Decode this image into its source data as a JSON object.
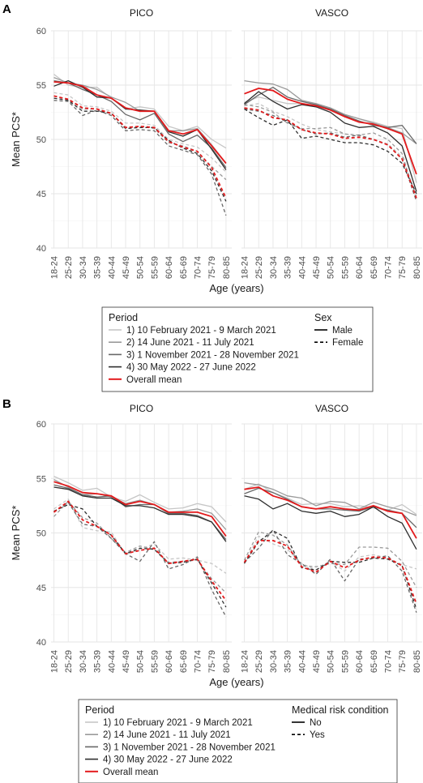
{
  "chart_data": [
    {
      "type": "line",
      "panel_label": "A",
      "facets": [
        "PICO",
        "VASCO"
      ],
      "categories": [
        "18-24",
        "25-29",
        "30-34",
        "35-39",
        "40-44",
        "45-49",
        "50-54",
        "55-59",
        "60-64",
        "65-69",
        "70-74",
        "75-79",
        "80-85"
      ],
      "ylabel": "Mean PCS*",
      "xlabel": "Age (years)",
      "ylim": [
        40,
        60
      ],
      "yticks": [
        40,
        45,
        50,
        55,
        60
      ],
      "grid": true,
      "legend_position": "bottom",
      "legend": {
        "color_title": "Period",
        "color_entries": [
          {
            "label": "1) 10 February 2021 - 9 March 2021",
            "color": "#c6c6c6"
          },
          {
            "label": "2) 14 June 2021 - 11 July 2021",
            "color": "#9a9a9a"
          },
          {
            "label": "3) 1 November 2021 - 28 November 2021",
            "color": "#686868"
          },
          {
            "label": "4) 30 May 2022 - 27 June 2022",
            "color": "#2e2e2e"
          },
          {
            "label": "Overall mean",
            "color": "#e31a1c"
          }
        ],
        "linetype_title": "Sex",
        "linetype_entries": [
          {
            "label": "Male",
            "style": "solid"
          },
          {
            "label": "Female",
            "style": "dashed"
          }
        ]
      },
      "series": [
        {
          "facet": "PICO",
          "period": 1,
          "group": "Male",
          "values": [
            56.0,
            55.0,
            54.8,
            54.8,
            53.8,
            52.8,
            53.0,
            52.8,
            51.2,
            50.8,
            51.2,
            50.0,
            49.2
          ]
        },
        {
          "facet": "PICO",
          "period": 2,
          "group": "Male",
          "values": [
            55.7,
            55.2,
            55.0,
            54.6,
            53.9,
            53.4,
            52.6,
            52.6,
            50.8,
            50.8,
            51.0,
            49.5,
            47.8
          ]
        },
        {
          "facet": "PICO",
          "period": 3,
          "group": "Male",
          "values": [
            55.4,
            55.2,
            54.6,
            54.1,
            53.5,
            52.3,
            51.8,
            52.4,
            50.5,
            49.8,
            50.4,
            49.2,
            47.4
          ]
        },
        {
          "facet": "PICO",
          "period": 4,
          "group": "Male",
          "values": [
            54.9,
            55.4,
            54.8,
            53.9,
            53.8,
            52.8,
            52.7,
            52.6,
            50.7,
            50.3,
            50.9,
            49.1,
            47.2
          ]
        },
        {
          "facet": "PICO",
          "period": "mean",
          "group": "Male",
          "values": [
            55.3,
            55.2,
            54.9,
            54.1,
            53.8,
            52.9,
            52.6,
            52.6,
            50.8,
            50.5,
            50.9,
            49.4,
            47.8
          ]
        },
        {
          "facet": "PICO",
          "period": 1,
          "group": "Female",
          "values": [
            54.3,
            54.1,
            53.1,
            53.0,
            52.6,
            51.5,
            51.5,
            51.3,
            50.0,
            49.6,
            49.3,
            48.3,
            47.0
          ]
        },
        {
          "facet": "PICO",
          "period": 2,
          "group": "Female",
          "values": [
            54.0,
            53.7,
            52.8,
            52.8,
            52.4,
            51.1,
            51.2,
            51.0,
            49.7,
            49.4,
            48.9,
            47.5,
            46.3
          ]
        },
        {
          "facet": "PICO",
          "period": 3,
          "group": "Female",
          "values": [
            53.6,
            53.5,
            52.2,
            52.7,
            52.2,
            50.8,
            50.9,
            50.8,
            49.4,
            49.0,
            48.6,
            46.8,
            43.0
          ]
        },
        {
          "facet": "PICO",
          "period": 4,
          "group": "Female",
          "values": [
            53.8,
            53.6,
            52.6,
            52.6,
            52.4,
            51.0,
            51.1,
            51.1,
            49.9,
            49.2,
            48.7,
            47.1,
            44.3
          ]
        },
        {
          "facet": "PICO",
          "period": "mean",
          "group": "Female",
          "values": [
            54.0,
            53.7,
            52.9,
            52.8,
            52.4,
            51.1,
            51.2,
            51.1,
            49.8,
            49.3,
            48.9,
            47.4,
            44.6
          ]
        },
        {
          "facet": "VASCO",
          "period": 1,
          "group": "Male",
          "values": [
            53.4,
            53.9,
            53.6,
            53.3,
            53.3,
            53.1,
            52.8,
            52.3,
            51.9,
            51.6,
            51.2,
            51.0,
            46.0
          ]
        },
        {
          "facet": "VASCO",
          "period": 2,
          "group": "Male",
          "values": [
            55.4,
            55.2,
            55.1,
            54.6,
            53.6,
            53.3,
            52.9,
            52.3,
            51.9,
            51.5,
            51.1,
            50.6,
            49.6
          ]
        },
        {
          "facet": "VASCO",
          "period": 3,
          "group": "Male",
          "values": [
            53.2,
            54.1,
            54.8,
            53.9,
            53.5,
            53.2,
            52.8,
            52.2,
            51.7,
            51.3,
            51.1,
            51.3,
            49.6
          ]
        },
        {
          "facet": "VASCO",
          "period": 4,
          "group": "Male",
          "values": [
            53.3,
            54.4,
            53.5,
            52.8,
            53.2,
            53.0,
            52.5,
            51.5,
            51.1,
            51.2,
            50.6,
            49.4,
            45.2
          ]
        },
        {
          "facet": "VASCO",
          "period": "mean",
          "group": "Male",
          "values": [
            54.2,
            54.7,
            54.5,
            53.7,
            53.3,
            53.1,
            52.7,
            52.1,
            51.6,
            51.4,
            51.0,
            50.5,
            46.8
          ]
        },
        {
          "facet": "VASCO",
          "period": 1,
          "group": "Female",
          "values": [
            53.1,
            53.3,
            52.6,
            52.1,
            51.4,
            50.9,
            50.7,
            50.5,
            50.3,
            50.0,
            49.6,
            48.4,
            44.8
          ]
        },
        {
          "facet": "VASCO",
          "period": 2,
          "group": "Female",
          "values": [
            53.2,
            53.0,
            52.5,
            51.5,
            51.0,
            51.0,
            51.1,
            50.5,
            50.4,
            50.6,
            50.0,
            48.7,
            44.4
          ]
        },
        {
          "facet": "VASCO",
          "period": 3,
          "group": "Female",
          "values": [
            52.8,
            52.6,
            52.2,
            51.6,
            50.9,
            50.5,
            50.6,
            50.2,
            50.4,
            50.0,
            49.5,
            48.2,
            44.3
          ]
        },
        {
          "facet": "VASCO",
          "period": 4,
          "group": "Female",
          "values": [
            52.8,
            52.0,
            51.3,
            51.8,
            50.1,
            50.3,
            50.0,
            49.7,
            49.7,
            49.5,
            48.9,
            47.8,
            45.0
          ]
        },
        {
          "facet": "VASCO",
          "period": "mean",
          "group": "Female",
          "values": [
            52.9,
            52.7,
            52.0,
            51.8,
            50.9,
            50.6,
            50.5,
            50.1,
            50.2,
            50.0,
            49.5,
            48.2,
            44.6
          ]
        }
      ]
    },
    {
      "type": "line",
      "panel_label": "B",
      "facets": [
        "PICO",
        "VASCO"
      ],
      "categories": [
        "18-24",
        "25-29",
        "30-34",
        "35-39",
        "40-44",
        "45-49",
        "50-54",
        "55-59",
        "60-64",
        "65-69",
        "70-74",
        "75-79",
        "80-85"
      ],
      "ylabel": "Mean PCS*",
      "xlabel": "Age (years)",
      "ylim": [
        40,
        60
      ],
      "yticks": [
        40,
        45,
        50,
        55,
        60
      ],
      "grid": true,
      "legend_position": "bottom",
      "legend": {
        "color_title": "Period",
        "color_entries": [
          {
            "label": "1) 10 February 2021 - 9 March 2021",
            "color": "#c6c6c6"
          },
          {
            "label": "2) 14 June 2021 - 11 July 2021",
            "color": "#9a9a9a"
          },
          {
            "label": "3) 1 November 2021 - 28 November 2021",
            "color": "#686868"
          },
          {
            "label": "4) 30 May 2022 - 27 June 2022",
            "color": "#2e2e2e"
          },
          {
            "label": "Overall mean",
            "color": "#e31a1c"
          }
        ],
        "linetype_title": "Medical risk condition",
        "linetype_entries": [
          {
            "label": "No",
            "style": "solid"
          },
          {
            "label": "Yes",
            "style": "dashed"
          }
        ]
      },
      "series": [
        {
          "facet": "PICO",
          "period": 1,
          "group": "No",
          "values": [
            55.2,
            54.6,
            53.9,
            54.1,
            53.3,
            52.9,
            53.5,
            52.8,
            52.2,
            52.3,
            52.7,
            52.4,
            51.0
          ]
        },
        {
          "facet": "PICO",
          "period": 2,
          "group": "No",
          "values": [
            54.9,
            54.2,
            53.5,
            53.6,
            53.3,
            52.7,
            53.0,
            52.6,
            51.9,
            52.0,
            52.2,
            51.8,
            50.3
          ]
        },
        {
          "facet": "PICO",
          "period": 3,
          "group": "No",
          "values": [
            54.4,
            54.1,
            53.5,
            53.3,
            53.4,
            52.4,
            52.6,
            52.6,
            51.8,
            51.8,
            51.6,
            51.0,
            49.4
          ]
        },
        {
          "facet": "PICO",
          "period": 4,
          "group": "No",
          "values": [
            54.2,
            54.0,
            53.4,
            53.2,
            53.2,
            52.5,
            52.5,
            52.3,
            51.7,
            51.7,
            51.5,
            51.0,
            49.2
          ]
        },
        {
          "facet": "PICO",
          "period": "mean",
          "group": "No",
          "values": [
            54.7,
            54.3,
            53.7,
            53.6,
            53.4,
            52.6,
            52.9,
            52.6,
            51.9,
            51.9,
            51.9,
            51.5,
            49.7
          ]
        },
        {
          "facet": "PICO",
          "period": 1,
          "group": "Yes",
          "values": [
            52.2,
            53.1,
            50.5,
            50.2,
            50.1,
            48.0,
            48.5,
            49.0,
            47.6,
            47.7,
            47.5,
            47.2,
            46.3
          ]
        },
        {
          "facet": "PICO",
          "period": 2,
          "group": "Yes",
          "values": [
            51.5,
            52.9,
            51.4,
            50.9,
            49.5,
            48.2,
            48.8,
            48.5,
            47.3,
            47.4,
            47.5,
            45.8,
            44.5
          ]
        },
        {
          "facet": "PICO",
          "period": 3,
          "group": "Yes",
          "values": [
            51.9,
            52.8,
            50.8,
            50.6,
            49.5,
            48.1,
            47.4,
            49.2,
            46.7,
            47.1,
            47.8,
            44.8,
            42.3
          ]
        },
        {
          "facet": "PICO",
          "period": 4,
          "group": "Yes",
          "values": [
            52.0,
            52.6,
            52.2,
            50.6,
            49.8,
            48.1,
            48.6,
            48.5,
            47.2,
            47.3,
            47.6,
            45.4,
            43.2
          ]
        },
        {
          "facet": "PICO",
          "period": "mean",
          "group": "Yes",
          "values": [
            51.9,
            52.9,
            51.2,
            50.6,
            49.8,
            48.1,
            48.4,
            48.6,
            47.2,
            47.4,
            47.6,
            45.6,
            43.8
          ]
        },
        {
          "facet": "VASCO",
          "period": 1,
          "group": "No",
          "values": [
            54.0,
            54.5,
            53.7,
            53.2,
            52.6,
            52.7,
            52.7,
            52.4,
            52.5,
            52.3,
            52.1,
            52.6,
            51.7
          ]
        },
        {
          "facet": "VASCO",
          "period": 2,
          "group": "No",
          "values": [
            54.6,
            54.4,
            54.0,
            53.4,
            53.2,
            52.5,
            52.9,
            52.8,
            52.2,
            52.8,
            52.4,
            52.1,
            51.6
          ]
        },
        {
          "facet": "VASCO",
          "period": 3,
          "group": "No",
          "values": [
            53.6,
            54.1,
            53.7,
            53.1,
            52.4,
            52.2,
            52.2,
            52.1,
            52.0,
            52.4,
            52.1,
            51.8,
            50.5
          ]
        },
        {
          "facet": "VASCO",
          "period": 4,
          "group": "No",
          "values": [
            53.4,
            53.1,
            52.2,
            52.7,
            52.0,
            51.8,
            52.0,
            51.5,
            51.7,
            52.4,
            51.5,
            50.9,
            48.5
          ]
        },
        {
          "facet": "VASCO",
          "period": "mean",
          "group": "No",
          "values": [
            54.0,
            54.2,
            53.4,
            53.0,
            52.4,
            52.2,
            52.4,
            52.2,
            52.1,
            52.5,
            52.0,
            51.8,
            49.5
          ]
        },
        {
          "facet": "VASCO",
          "period": 1,
          "group": "Yes",
          "values": [
            47.3,
            49.7,
            49.0,
            48.5,
            47.2,
            46.6,
            47.4,
            46.5,
            47.8,
            48.0,
            47.7,
            47.1,
            46.7
          ]
        },
        {
          "facet": "VASCO",
          "period": 2,
          "group": "Yes",
          "values": [
            47.5,
            50.1,
            49.8,
            48.9,
            47.0,
            46.9,
            47.2,
            47.1,
            48.7,
            48.7,
            48.6,
            47.4,
            45.0
          ]
        },
        {
          "facet": "VASCO",
          "period": 3,
          "group": "Yes",
          "values": [
            47.3,
            48.6,
            50.3,
            48.0,
            47.2,
            46.2,
            47.6,
            45.6,
            47.6,
            47.7,
            47.9,
            46.5,
            42.7
          ]
        },
        {
          "facet": "VASCO",
          "period": 4,
          "group": "Yes",
          "values": [
            47.2,
            49.2,
            50.2,
            49.5,
            46.8,
            46.6,
            47.4,
            47.3,
            47.3,
            47.7,
            47.6,
            47.0,
            43.0
          ]
        },
        {
          "facet": "VASCO",
          "period": "mean",
          "group": "Yes",
          "values": [
            47.3,
            49.3,
            49.3,
            48.8,
            46.9,
            46.4,
            47.4,
            46.8,
            47.5,
            47.8,
            47.7,
            47.0,
            43.5
          ]
        }
      ]
    }
  ]
}
